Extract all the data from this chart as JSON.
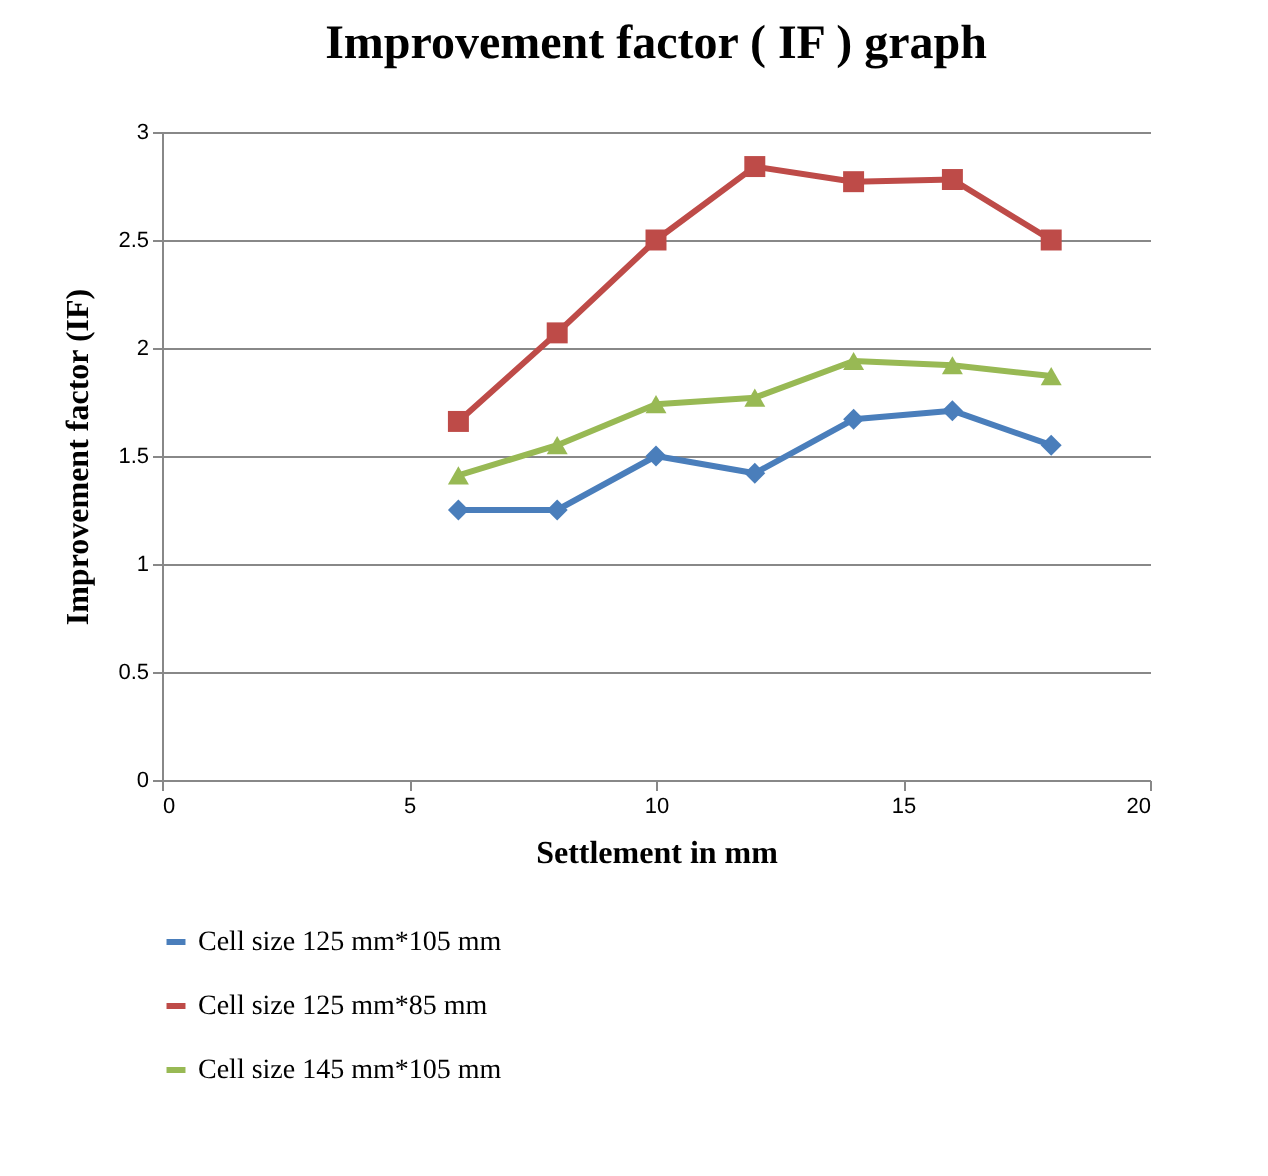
{
  "chart_data": {
    "type": "line",
    "title": "Improvement  factor ( IF ) graph",
    "xlabel": "Settlement in mm",
    "ylabel": "Improvement  factor (IF)",
    "x": [
      6,
      8,
      10,
      12,
      14,
      16,
      18
    ],
    "series": [
      {
        "name": "Cell size 125 mm*105 mm",
        "color": "#4a7ebb",
        "marker": "diamond",
        "values": [
          1.25,
          1.25,
          1.5,
          1.42,
          1.67,
          1.71,
          1.55
        ]
      },
      {
        "name": "Cell size 125 mm*85 mm",
        "color": "#be4b48",
        "marker": "square",
        "values": [
          1.66,
          2.07,
          2.5,
          2.84,
          2.77,
          2.78,
          2.5
        ]
      },
      {
        "name": "Cell size 145 mm*105 mm",
        "color": "#98b954",
        "marker": "triangle",
        "values": [
          1.41,
          1.55,
          1.74,
          1.77,
          1.94,
          1.92,
          1.87
        ]
      }
    ],
    "xlim": [
      0,
      20
    ],
    "xticks": [
      0,
      5,
      10,
      15,
      20
    ],
    "ylim": [
      0,
      3
    ],
    "yticks": [
      0,
      0.5,
      1,
      1.5,
      2,
      2.5,
      3
    ],
    "grid": "y",
    "legend": "bottom",
    "line_style": "solid"
  }
}
